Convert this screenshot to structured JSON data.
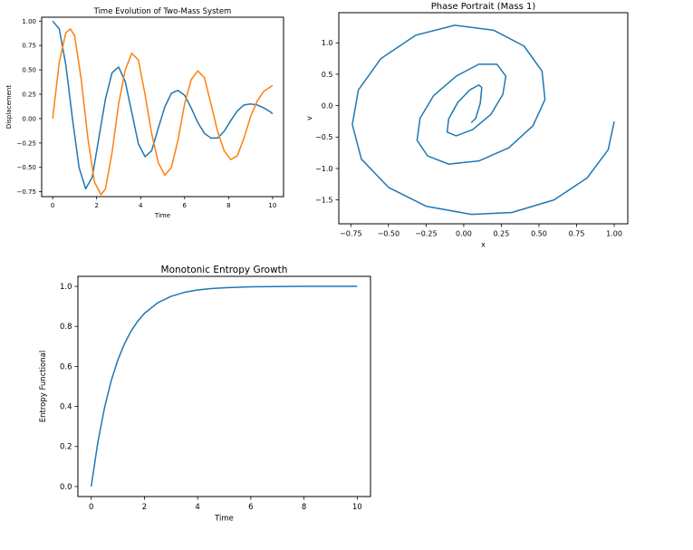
{
  "colors": {
    "series_a": "#1f77b4",
    "series_b": "#ff7f0e",
    "axes": "#000000",
    "background": "#ffffff"
  },
  "chart_data": [
    {
      "type": "line",
      "title": "Time Evolution of Two-Mass System",
      "xlabel": "Time",
      "ylabel": "Displacement",
      "xlim": [
        -0.5,
        10.5
      ],
      "ylim": [
        -0.8,
        1.04
      ],
      "xticks": [
        0,
        2,
        4,
        6,
        8,
        10
      ],
      "yticks": [
        -0.75,
        -0.5,
        -0.25,
        0.0,
        0.25,
        0.5,
        0.75,
        1.0
      ],
      "xtick_labels": [
        "0",
        "2",
        "4",
        "6",
        "8",
        "10"
      ],
      "ytick_labels": [
        "−0.75",
        "−0.50",
        "−0.25",
        "0.00",
        "0.25",
        "0.50",
        "0.75",
        "1.00"
      ],
      "grid": false,
      "series": [
        {
          "color": "#1f77b4",
          "x": [
            0,
            0.3,
            0.6,
            0.9,
            1.2,
            1.5,
            1.8,
            2.1,
            2.4,
            2.7,
            3.0,
            3.3,
            3.6,
            3.9,
            4.2,
            4.5,
            4.8,
            5.1,
            5.4,
            5.7,
            6.0,
            6.3,
            6.6,
            6.9,
            7.2,
            7.5,
            7.8,
            8.1,
            8.4,
            8.7,
            9.0,
            9.3,
            9.6,
            9.9,
            10.0
          ],
          "y": [
            1.0,
            0.92,
            0.55,
            0.0,
            -0.5,
            -0.72,
            -0.6,
            -0.2,
            0.2,
            0.47,
            0.53,
            0.38,
            0.06,
            -0.26,
            -0.39,
            -0.33,
            -0.1,
            0.12,
            0.26,
            0.29,
            0.24,
            0.11,
            -0.04,
            -0.15,
            -0.2,
            -0.2,
            -0.13,
            -0.02,
            0.08,
            0.14,
            0.15,
            0.14,
            0.11,
            0.07,
            0.05
          ]
        },
        {
          "color": "#ff7f0e",
          "x": [
            0,
            0.3,
            0.6,
            0.8,
            1.0,
            1.3,
            1.6,
            1.9,
            2.2,
            2.4,
            2.7,
            3.0,
            3.3,
            3.6,
            3.9,
            4.2,
            4.5,
            4.8,
            5.1,
            5.4,
            5.7,
            6.0,
            6.3,
            6.6,
            6.9,
            7.2,
            7.5,
            7.8,
            8.1,
            8.4,
            8.7,
            9.0,
            9.3,
            9.6,
            10.0
          ],
          "y": [
            0.0,
            0.58,
            0.88,
            0.92,
            0.85,
            0.4,
            -0.2,
            -0.65,
            -0.78,
            -0.72,
            -0.35,
            0.15,
            0.5,
            0.67,
            0.6,
            0.25,
            -0.15,
            -0.45,
            -0.58,
            -0.5,
            -0.22,
            0.15,
            0.4,
            0.49,
            0.42,
            0.15,
            -0.13,
            -0.33,
            -0.42,
            -0.38,
            -0.2,
            0.02,
            0.18,
            0.28,
            0.34
          ]
        }
      ]
    },
    {
      "type": "line",
      "title": "Phase Portrait (Mass 1)",
      "xlabel": "x",
      "ylabel": "v",
      "xlim": [
        -0.83,
        1.09
      ],
      "ylim": [
        -1.88,
        1.48
      ],
      "xticks": [
        -0.75,
        -0.5,
        -0.25,
        0.0,
        0.25,
        0.5,
        0.75,
        1.0
      ],
      "yticks": [
        -1.5,
        -1.0,
        -0.5,
        0.0,
        0.5,
        1.0
      ],
      "xtick_labels": [
        "−0.75",
        "−0.50",
        "−0.25",
        "0.00",
        "0.25",
        "0.50",
        "0.75",
        "1.00"
      ],
      "ytick_labels": [
        "−1.5",
        "−1.0",
        "−0.5",
        "0.0",
        "0.5",
        "1.0"
      ],
      "grid": false,
      "series": [
        {
          "color": "#1f77b4",
          "x": [
            1.0,
            0.96,
            0.82,
            0.6,
            0.32,
            0.05,
            -0.25,
            -0.5,
            -0.68,
            -0.74,
            -0.7,
            -0.55,
            -0.32,
            -0.06,
            0.2,
            0.4,
            0.52,
            0.54,
            0.46,
            0.3,
            0.1,
            -0.1,
            -0.24,
            -0.31,
            -0.29,
            -0.2,
            -0.05,
            0.1,
            0.22,
            0.28,
            0.26,
            0.18,
            0.06,
            -0.05,
            -0.11,
            -0.1,
            -0.04,
            0.04,
            0.1,
            0.12,
            0.11,
            0.08,
            0.05
          ],
          "y": [
            -0.25,
            -0.7,
            -1.15,
            -1.5,
            -1.7,
            -1.73,
            -1.6,
            -1.3,
            -0.85,
            -0.3,
            0.25,
            0.75,
            1.12,
            1.28,
            1.2,
            0.95,
            0.55,
            0.1,
            -0.32,
            -0.67,
            -0.88,
            -0.93,
            -0.8,
            -0.55,
            -0.2,
            0.16,
            0.47,
            0.66,
            0.66,
            0.47,
            0.18,
            -0.14,
            -0.38,
            -0.48,
            -0.42,
            -0.21,
            0.05,
            0.25,
            0.33,
            0.29,
            0.04,
            -0.2,
            -0.27
          ]
        }
      ]
    },
    {
      "type": "line",
      "title": "Monotonic Entropy Growth",
      "xlabel": "Time",
      "ylabel": "Entropy Functional",
      "xlim": [
        -0.5,
        10.5
      ],
      "ylim": [
        -0.05,
        1.05
      ],
      "xticks": [
        0,
        2,
        4,
        6,
        8,
        10
      ],
      "yticks": [
        0.0,
        0.2,
        0.4,
        0.6,
        0.8,
        1.0
      ],
      "xtick_labels": [
        "0",
        "2",
        "4",
        "6",
        "8",
        "10"
      ],
      "ytick_labels": [
        "0.0",
        "0.2",
        "0.4",
        "0.6",
        "0.8",
        "1.0"
      ],
      "grid": false,
      "series": [
        {
          "color": "#1f77b4",
          "x": [
            0,
            0.25,
            0.5,
            0.75,
            1.0,
            1.25,
            1.5,
            1.75,
            2.0,
            2.5,
            3.0,
            3.5,
            4.0,
            4.5,
            5.0,
            6.0,
            7.0,
            8.0,
            9.0,
            10.0
          ],
          "y": [
            0.0,
            0.221,
            0.393,
            0.528,
            0.632,
            0.713,
            0.777,
            0.826,
            0.865,
            0.918,
            0.95,
            0.97,
            0.982,
            0.989,
            0.993,
            0.998,
            0.999,
            1.0,
            1.0,
            1.0
          ]
        }
      ]
    }
  ]
}
